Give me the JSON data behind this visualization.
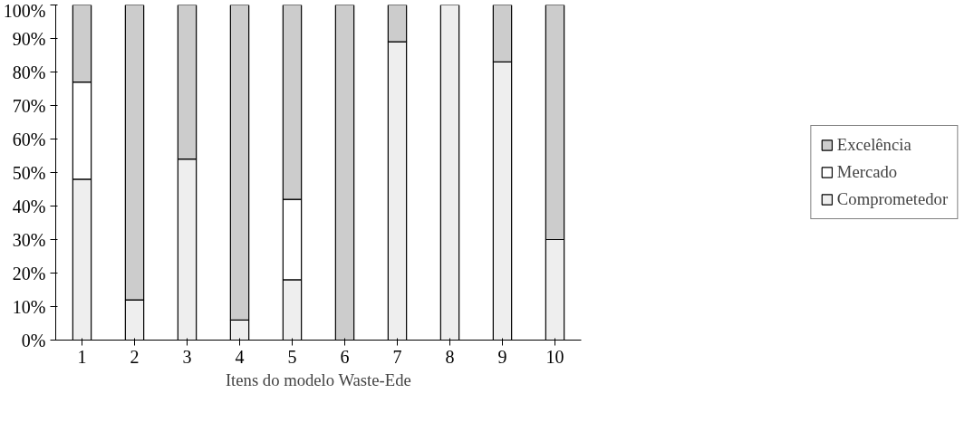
{
  "chart_data": {
    "type": "bar",
    "stacked": true,
    "xlabel": "Itens do modelo Waste-Ede",
    "categories": [
      "1",
      "2",
      "3",
      "4",
      "5",
      "6",
      "7",
      "8",
      "9",
      "10"
    ],
    "series": [
      {
        "name": "Comprometedor",
        "color": "#eeeeee",
        "values": [
          48,
          12,
          54,
          6,
          18,
          0,
          89,
          100,
          83,
          30
        ]
      },
      {
        "name": "Mercado",
        "color": "#ffffff",
        "values": [
          29,
          0,
          0,
          0,
          24,
          0,
          0,
          0,
          0,
          0
        ]
      },
      {
        "name": "Excelência",
        "color": "#cccccc",
        "values": [
          23,
          88,
          46,
          94,
          58,
          100,
          11,
          0,
          17,
          70
        ]
      }
    ],
    "ylim": [
      0,
      100
    ],
    "yticks": [
      {
        "value": 0,
        "label": "0%"
      },
      {
        "value": 10,
        "label": "10%"
      },
      {
        "value": 20,
        "label": "20%"
      },
      {
        "value": 30,
        "label": "30%"
      },
      {
        "value": 40,
        "label": "40%"
      },
      {
        "value": 50,
        "label": "50%"
      },
      {
        "value": 60,
        "label": "60%"
      },
      {
        "value": 70,
        "label": "70%"
      },
      {
        "value": 80,
        "label": "80%"
      },
      {
        "value": 90,
        "label": "90%"
      },
      {
        "value": 100,
        "label": "100%"
      }
    ],
    "grid": false,
    "legend": "right"
  }
}
